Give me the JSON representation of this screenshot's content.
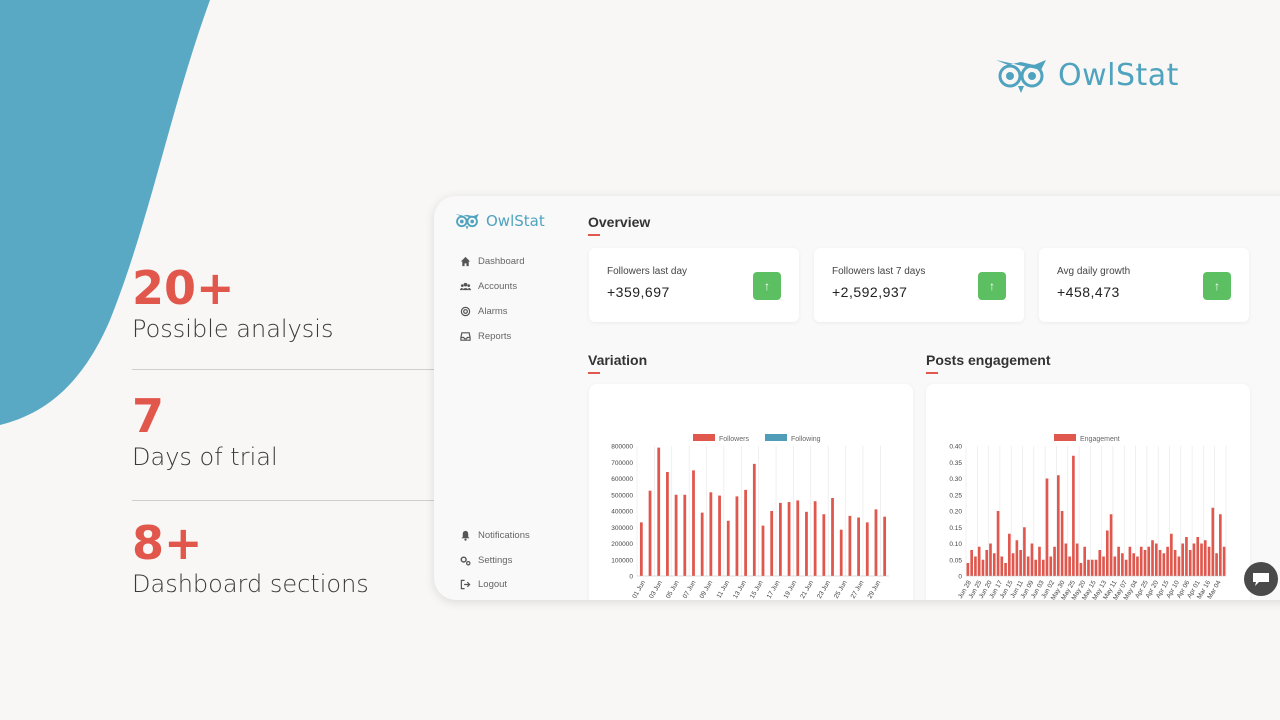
{
  "brand": {
    "name": "OwlStat",
    "color": "#4fa3bf",
    "icon": "owl-logo-icon"
  },
  "stats": [
    {
      "value": "20+",
      "label": "Possible analysis"
    },
    {
      "value": "7",
      "label": "Days of trial"
    },
    {
      "value": "8+",
      "label": "Dashboard sections"
    }
  ],
  "sidebar": {
    "logo": "OwlStat",
    "items": [
      {
        "label": "Dashboard",
        "icon": "home-icon"
      },
      {
        "label": "Accounts",
        "icon": "users-icon"
      },
      {
        "label": "Alarms",
        "icon": "target-icon"
      },
      {
        "label": "Reports",
        "icon": "inbox-icon"
      }
    ],
    "bottom_items": [
      {
        "label": "Notifications",
        "icon": "bell-icon"
      },
      {
        "label": "Settings",
        "icon": "gears-icon"
      },
      {
        "label": "Logout",
        "icon": "logout-icon"
      }
    ]
  },
  "overview": {
    "title": "Overview",
    "cards": [
      {
        "title": "Followers last day",
        "value": "+359,697",
        "icon": "arrow-up-icon"
      },
      {
        "title": "Followers last 7 days",
        "value": "+2,592,937",
        "icon": "arrow-up-icon"
      },
      {
        "title": "Avg daily growth",
        "value": "+458,473",
        "icon": "arrow-up-icon"
      }
    ]
  },
  "colors": {
    "accent": "#e2574c",
    "bar": "#e0574d",
    "following": "#4f9db8",
    "up": "#5cbf61"
  },
  "chart_data": [
    {
      "type": "bar",
      "title": "Variation",
      "legend": [
        "Followers",
        "Following"
      ],
      "legend_position": "top",
      "ylim": [
        0,
        800000
      ],
      "yticks": [
        0,
        100000,
        200000,
        300000,
        400000,
        500000,
        600000,
        700000,
        800000
      ],
      "xticks": [
        "01 Jun",
        "03 Jun",
        "05 Jun",
        "07 Jun",
        "09 Jun",
        "11 Jun",
        "13 Jun",
        "15 Jun",
        "17 Jun",
        "19 Jun",
        "21 Jun",
        "23 Jun",
        "25 Jun",
        "27 Jun",
        "29 Jun"
      ],
      "series": [
        {
          "name": "Followers",
          "values": [
            330000,
            525000,
            790000,
            640000,
            500000,
            500000,
            650000,
            390000,
            515000,
            495000,
            340000,
            490000,
            530000,
            690000,
            310000,
            400000,
            450000,
            455000,
            465000,
            395000,
            460000,
            380000,
            480000,
            285000,
            370000,
            360000,
            330000,
            410000,
            365000
          ]
        },
        {
          "name": "Following",
          "values": [
            0,
            0,
            0,
            0,
            0,
            0,
            0,
            0,
            0,
            0,
            0,
            0,
            0,
            0,
            0,
            0,
            0,
            0,
            0,
            0,
            0,
            0,
            0,
            0,
            0,
            0,
            0,
            0,
            0
          ]
        }
      ]
    },
    {
      "type": "bar",
      "title": "Posts engagement",
      "legend": [
        "Engagement"
      ],
      "legend_position": "top",
      "ylim": [
        0,
        0.4
      ],
      "yticks": [
        "0",
        "0.05",
        "0.10",
        "0.15",
        "0.20",
        "0.25",
        "0.30",
        "0.35",
        "0.40"
      ],
      "xticks": [
        "Jun 28",
        "Jun 25",
        "Jun 20",
        "Jun 17",
        "Jun 15",
        "Jun 11",
        "Jun 09",
        "Jun 03",
        "Jun 02",
        "May 30",
        "May 25",
        "May 20",
        "May 15",
        "May 13",
        "May 11",
        "May 07",
        "May 04",
        "Apr 25",
        "Apr 20",
        "Apr 15",
        "Apr 10",
        "Apr 06",
        "Apr 01",
        "Mar 16",
        "Mar 04"
      ],
      "series": [
        {
          "name": "Engagement",
          "values": [
            0.04,
            0.08,
            0.06,
            0.09,
            0.05,
            0.08,
            0.1,
            0.07,
            0.2,
            0.06,
            0.04,
            0.13,
            0.07,
            0.11,
            0.08,
            0.15,
            0.06,
            0.1,
            0.05,
            0.09,
            0.05,
            0.3,
            0.06,
            0.09,
            0.31,
            0.2,
            0.1,
            0.06,
            0.37,
            0.1,
            0.04,
            0.09,
            0.05,
            0.05,
            0.05,
            0.08,
            0.06,
            0.14,
            0.19,
            0.06,
            0.09,
            0.07,
            0.05,
            0.09,
            0.07,
            0.06,
            0.09,
            0.08,
            0.09,
            0.11,
            0.1,
            0.08,
            0.07,
            0.09,
            0.13,
            0.08,
            0.06,
            0.1,
            0.12,
            0.08,
            0.1,
            0.12,
            0.1,
            0.11,
            0.09,
            0.21,
            0.07,
            0.19,
            0.09
          ]
        }
      ]
    }
  ]
}
